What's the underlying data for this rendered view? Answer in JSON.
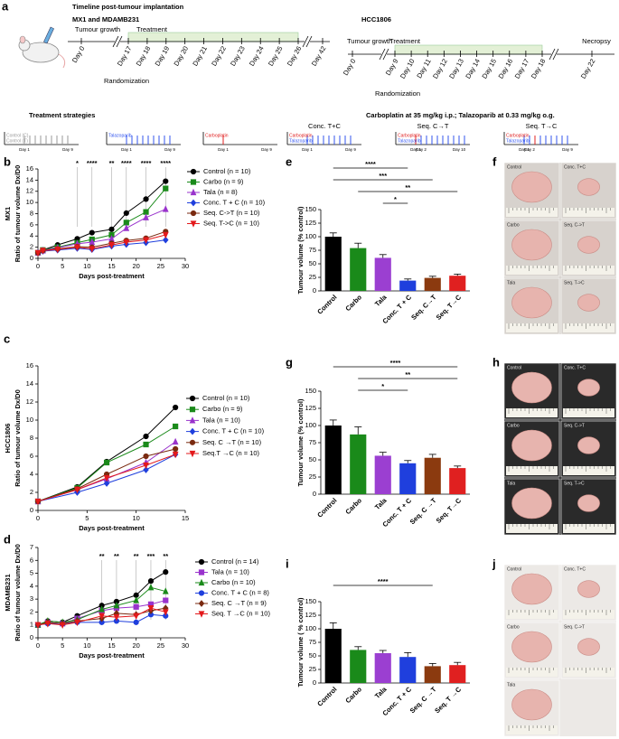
{
  "panel_labels": [
    "a",
    "b",
    "c",
    "d",
    "e",
    "f",
    "g",
    "h",
    "i",
    "j"
  ],
  "timeline": {
    "title": "Timeline post-tumour implantation",
    "groups": [
      {
        "name": "MX1 and MDAMB231",
        "phases": [
          "Tumour growth",
          "Treatment"
        ],
        "days": [
          "Day 0",
          "Day 17",
          "Day 18",
          "Day 19",
          "Day 20",
          "Day 21",
          "Day 22",
          "Day 23",
          "Day 24",
          "Day 25",
          "Day 26",
          "Day 42"
        ],
        "event": "Randomization"
      },
      {
        "name": "HCC1806",
        "phases": [
          "Tumour growth",
          "Treatment"
        ],
        "days": [
          "Day 0",
          "Day 9",
          "Day 10",
          "Day 11",
          "Day 12",
          "Day 13",
          "Day 14",
          "Day 15",
          "Day 16",
          "Day 17",
          "Day 18",
          "Day 22"
        ],
        "event": "Randomization",
        "end_label": "Necropsy"
      }
    ]
  },
  "strategies": {
    "title": "Treatment strategies",
    "dosing": "Carboplatin at 35 mg/kg i.p.; Talazoparib at 0.33 mg/kg o.g.",
    "items": [
      {
        "labels": [
          "Control (C)",
          "Control (T)"
        ],
        "days": [
          "Day 1",
          "Day 9"
        ]
      },
      {
        "labels": [
          "Talazoparib"
        ],
        "days": [
          "Day 1",
          "Day 9"
        ]
      },
      {
        "labels": [
          "Carboplatin"
        ],
        "days": [
          "Day 1",
          "Day 9"
        ]
      },
      {
        "name": "Conc. T+C",
        "labels": [
          "Carboplatin",
          "Talazoparib"
        ],
        "days": [
          "Day 1",
          "Day 9"
        ]
      },
      {
        "name": "Seq. C→T",
        "labels": [
          "Carboplatin",
          "Talazoparib"
        ],
        "days": [
          "Day 1",
          "Day 2",
          "Day 10"
        ]
      },
      {
        "name": "Seq. T→C",
        "labels": [
          "Carboplatin",
          "Talazoparib"
        ],
        "days": [
          "Day 1",
          "Day 2",
          "Day 9"
        ]
      }
    ]
  },
  "chart_data": [
    {
      "type": "line",
      "group_label": "MX1",
      "ylabel": "Ratio of tumour volume Dx/D0",
      "xlabel": "Days post-treatment",
      "x": [
        0,
        1,
        4,
        8,
        11,
        15,
        18,
        22,
        26
      ],
      "xlim": [
        0,
        30
      ],
      "xticks": [
        0,
        5,
        10,
        15,
        20,
        25,
        30
      ],
      "ylim": [
        0,
        16
      ],
      "yticks": [
        0,
        2,
        4,
        6,
        8,
        10,
        12,
        14,
        16
      ],
      "annotations": [
        {
          "x": 8,
          "text": "*"
        },
        {
          "x": 11,
          "text": "****"
        },
        {
          "x": 15,
          "text": "**"
        },
        {
          "x": 18,
          "text": "****"
        },
        {
          "x": 22,
          "text": "****"
        },
        {
          "x": 26,
          "text": "****"
        }
      ],
      "series": [
        {
          "name": "Control (n = 10)",
          "color": "#000000",
          "marker": "circle",
          "values": [
            1,
            1.5,
            2.4,
            3.5,
            4.6,
            5.2,
            8.1,
            10.6,
            13.8
          ]
        },
        {
          "name": "Carbo (n = 9)",
          "color": "#1a8a1a",
          "marker": "square",
          "values": [
            1,
            1.5,
            2.0,
            2.8,
            3.4,
            4.2,
            6.4,
            8.3,
            12.5
          ]
        },
        {
          "name": "Tala (n = 8)",
          "color": "#9933cc",
          "marker": "triangle",
          "values": [
            1,
            1.4,
            1.9,
            2.6,
            2.9,
            3.5,
            5.4,
            7.3,
            8.8
          ]
        },
        {
          "name": "Conc. T + C (n = 10)",
          "color": "#1f3fdd",
          "marker": "diamond",
          "values": [
            1,
            1.3,
            1.5,
            1.8,
            1.6,
            2.2,
            2.5,
            2.8,
            3.3
          ]
        },
        {
          "name": "Seq. C->T (n = 10)",
          "color": "#7a2a10",
          "marker": "circle",
          "values": [
            1,
            1.4,
            1.7,
            2.1,
            2.0,
            2.7,
            3.2,
            3.6,
            4.8
          ]
        },
        {
          "name": "Seq. T->C (n = 10)",
          "color": "#e31a1c",
          "marker": "down",
          "values": [
            1,
            1.4,
            1.6,
            2.0,
            1.7,
            2.4,
            2.9,
            3.3,
            4.2
          ]
        }
      ]
    },
    {
      "type": "line",
      "group_label": "HCC1806",
      "ylabel": "Ratio of tumour volume Dx/D0",
      "xlabel": "Days post-treatment",
      "x": [
        0,
        4,
        7,
        11,
        14
      ],
      "xlim": [
        0,
        15
      ],
      "xticks": [
        0,
        5,
        10,
        15
      ],
      "ylim": [
        0,
        16
      ],
      "yticks": [
        0,
        2,
        4,
        6,
        8,
        10,
        12,
        14,
        16
      ],
      "series": [
        {
          "name": "Control (n = 10)",
          "color": "#000000",
          "marker": "circle",
          "values": [
            1,
            2.6,
            5.4,
            8.2,
            11.4
          ]
        },
        {
          "name": "Carbo (n = 9)",
          "color": "#1a8a1a",
          "marker": "square",
          "values": [
            1,
            2.5,
            5.3,
            7.3,
            9.3
          ]
        },
        {
          "name": "Tala (n = 10)",
          "color": "#9933cc",
          "marker": "triangle",
          "values": [
            1,
            2.3,
            3.5,
            5.3,
            7.6
          ]
        },
        {
          "name": "Conc. T + C (n = 10)",
          "color": "#1f3fdd",
          "marker": "diamond",
          "values": [
            1,
            2.0,
            3.0,
            4.5,
            6.2
          ]
        },
        {
          "name": "Seq. C →T (n = 10)",
          "color": "#7a2a10",
          "marker": "circle",
          "values": [
            1,
            2.4,
            4.0,
            6.0,
            6.8
          ]
        },
        {
          "name": "Seq.T →C (n = 10)",
          "color": "#e31a1c",
          "marker": "down",
          "values": [
            1,
            2.3,
            3.6,
            5.0,
            6.2
          ]
        }
      ]
    },
    {
      "type": "line",
      "group_label": "MDAMB231",
      "ylabel": "Ratio of tumour volume Dx/D0",
      "xlabel": "Days post-treatment",
      "x": [
        0,
        2,
        5,
        8,
        13,
        16,
        20,
        23,
        26
      ],
      "xlim": [
        0,
        30
      ],
      "xticks": [
        0,
        5,
        10,
        15,
        20,
        25,
        30
      ],
      "ylim": [
        0,
        7
      ],
      "yticks": [
        0,
        1,
        2,
        3,
        4,
        5,
        6,
        7
      ],
      "annotations": [
        {
          "x": 13,
          "text": "**"
        },
        {
          "x": 16,
          "text": "**"
        },
        {
          "x": 20,
          "text": "**"
        },
        {
          "x": 23,
          "text": "***"
        },
        {
          "x": 26,
          "text": "**"
        }
      ],
      "series": [
        {
          "name": "Control (n = 14)",
          "color": "#000000",
          "marker": "circle",
          "values": [
            1,
            1.3,
            1.2,
            1.7,
            2.5,
            2.8,
            3.3,
            4.4,
            5.1
          ]
        },
        {
          "name": "Tala (n = 10)",
          "color": "#9933cc",
          "marker": "square",
          "values": [
            1,
            1.2,
            1.1,
            1.5,
            2.1,
            2.3,
            2.4,
            2.6,
            2.9
          ]
        },
        {
          "name": "Carbo (n = 10)",
          "color": "#1a8a1a",
          "marker": "triangle",
          "values": [
            1,
            1.3,
            1.2,
            1.4,
            2.2,
            2.5,
            2.9,
            3.9,
            3.6
          ]
        },
        {
          "name": "Conc. T + C (n = 8)",
          "color": "#1f3fdd",
          "marker": "circle",
          "values": [
            1,
            1.1,
            1.1,
            1.2,
            1.2,
            1.3,
            1.2,
            1.8,
            1.7
          ]
        },
        {
          "name": "Seq. C →T (n = 9)",
          "color": "#7a2a10",
          "marker": "diamond",
          "values": [
            1,
            1.2,
            1.1,
            1.3,
            1.5,
            1.9,
            1.8,
            2.1,
            2.3
          ]
        },
        {
          "name": "Seq. T →C (n = 10)",
          "color": "#e31a1c",
          "marker": "down",
          "values": [
            1,
            1.1,
            1.0,
            1.2,
            1.7,
            1.6,
            1.7,
            2.3,
            2.0
          ]
        }
      ]
    },
    {
      "type": "bar",
      "ylabel": "Tumour volume (% control)",
      "categories": [
        "Control",
        "Carbo",
        "Tala",
        "Conc. T + C",
        "Seq. C→T",
        "Seq. T→C"
      ],
      "values": [
        100,
        79,
        61,
        19,
        24,
        28
      ],
      "errors": [
        7,
        9,
        6,
        3,
        3,
        3
      ],
      "colors": [
        "#000000",
        "#1a8a1a",
        "#9b3fd1",
        "#1f3fdd",
        "#8b3a0f",
        "#e02020"
      ],
      "ylim": [
        0,
        150
      ],
      "yticks": [
        0,
        25,
        50,
        75,
        100,
        125,
        150
      ],
      "brackets": [
        {
          "label": "****",
          "start": "Control",
          "end": "Conc. T + C"
        },
        {
          "label": "***",
          "start": "Control",
          "end": "Seq. C→T"
        },
        {
          "label": "**",
          "start": "Carbo",
          "end": "Seq. T→C"
        },
        {
          "label": "*",
          "start": "Tala",
          "end": "Conc. T + C"
        }
      ]
    },
    {
      "type": "bar",
      "ylabel": "Tumour volume (% control)",
      "categories": [
        "Control",
        "Carbo",
        "Tala",
        "Conc. T + C",
        "Seq. C →T",
        "Seq. T→C"
      ],
      "values": [
        100,
        87,
        56,
        45,
        53,
        38
      ],
      "errors": [
        8,
        11,
        5,
        4,
        5,
        3
      ],
      "colors": [
        "#000000",
        "#1a8a1a",
        "#9b3fd1",
        "#1f3fdd",
        "#8b3a0f",
        "#e02020"
      ],
      "ylim": [
        0,
        150
      ],
      "yticks": [
        0,
        25,
        50,
        75,
        100,
        125,
        150
      ],
      "brackets": [
        {
          "label": "****",
          "start": "Control",
          "end": "Seq. T→C"
        },
        {
          "label": "**",
          "start": "Carbo",
          "end": "Seq. T→C"
        },
        {
          "label": "*",
          "start": "Carbo",
          "end": "Conc. T + C"
        }
      ]
    },
    {
      "type": "bar",
      "ylabel": "Tumour volume ( % control)",
      "categories": [
        "Control",
        "Carbo",
        "Tala",
        "Conc. T + C",
        "Seq. C →T",
        "Seq. T →C"
      ],
      "values": [
        100,
        61,
        55,
        48,
        31,
        33
      ],
      "errors": [
        11,
        6,
        5,
        8,
        5,
        5
      ],
      "colors": [
        "#000000",
        "#1a8a1a",
        "#9b3fd1",
        "#1f3fdd",
        "#8b3a0f",
        "#e02020"
      ],
      "ylim": [
        0,
        150
      ],
      "yticks": [
        0,
        25,
        50,
        75,
        100,
        125,
        150
      ],
      "brackets": [
        {
          "label": "****",
          "start": "Control",
          "end": "Seq. C →T"
        }
      ]
    }
  ],
  "photos": [
    {
      "labels": [
        "Control",
        "Conc. T+C",
        "Carbo",
        "Seq. C->T",
        "Tala",
        "Seq. T->C"
      ]
    },
    {
      "labels": [
        "Control",
        "Conc. T+C",
        "Carbo",
        "Seq. C->T",
        "Tala",
        "Seq. T->C"
      ]
    },
    {
      "labels": [
        "Control",
        "Conc. T+C",
        "Carbo",
        "Seq. C->T",
        "Tala"
      ]
    }
  ]
}
